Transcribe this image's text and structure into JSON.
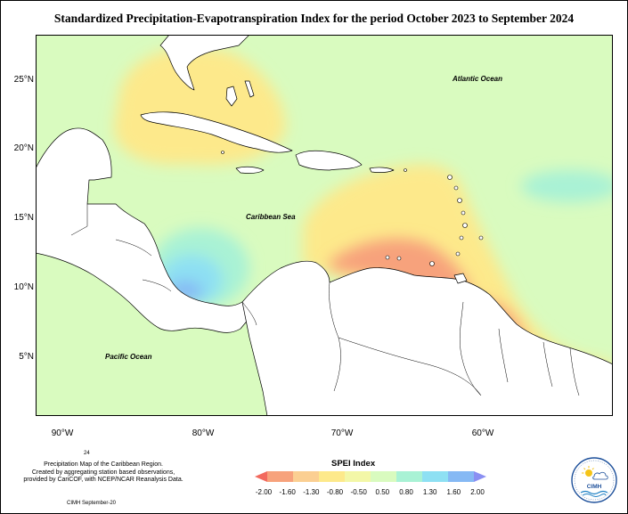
{
  "title": "Standardized Precipitation-Evapotranspiration Index for the period October 2023 to September 2024",
  "lat_labels": [
    "25°N",
    "20°N",
    "15°N",
    "10°N",
    "5°N"
  ],
  "lon_labels": [
    "90°W",
    "80°W",
    "70°W",
    "60°W"
  ],
  "ocean_labels": {
    "atlantic": "Atlantic Ocean",
    "caribbean": "Caribbean Sea",
    "pacific": "Pacific Ocean"
  },
  "caption": {
    "page_number": "24",
    "line1": "Precipitation Map of the Caribbean Region.",
    "line2": "Created by aggregating station based observations,",
    "line3": "provided by CariCOF, with NCEP/NCAR Reanalysis Data.",
    "credit": "CIMH September-20"
  },
  "legend": {
    "title": "SPEI Index",
    "ticks": [
      "-2.00",
      "-1.60",
      "-1.30",
      "-0.80",
      "-0.50",
      "0.50",
      "0.80",
      "1.30",
      "1.60",
      "2.00"
    ],
    "colors": [
      "#f26a5e",
      "#f7a27c",
      "#fbcf92",
      "#fde98b",
      "#f3f7a7",
      "#d9fbbf",
      "#a9f2d5",
      "#8ee0f3",
      "#86b9f4",
      "#8a8ff2"
    ]
  },
  "logo": {
    "name": "CIMH"
  },
  "colors": {
    "background_near_normal": "#d9fbbf",
    "dry": "#fde98b",
    "very_dry": "#f7a27c",
    "extreme_dry": "#f26a5e",
    "wet": "#a9f2d5",
    "very_wet": "#8ee0f3",
    "extreme_wet": "#86b9f4"
  }
}
